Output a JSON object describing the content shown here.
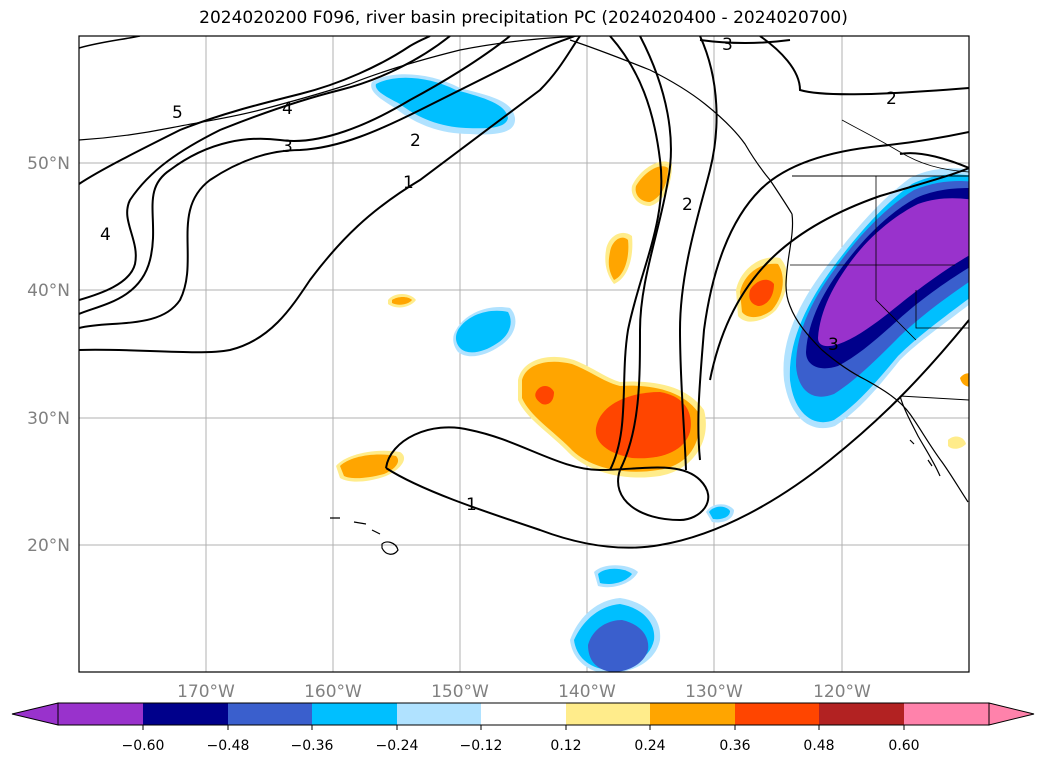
{
  "title": "2024020200 F096, river basin precipitation PC (2024020400 - 2024020700)",
  "map": {
    "lat_labels": [
      "50°N",
      "40°N",
      "30°N",
      "20°N"
    ],
    "lon_labels": [
      "170°W",
      "160°W",
      "150°W",
      "140°W",
      "130°W",
      "120°W"
    ],
    "contour_labels": [
      "5",
      "4",
      "3",
      "2",
      "1",
      "2",
      "2",
      "3",
      "4",
      "1",
      "3"
    ]
  },
  "colorbar": {
    "ticks": [
      "−0.60",
      "−0.48",
      "−0.36",
      "−0.24",
      "−0.12",
      "0.12",
      "0.24",
      "0.36",
      "0.48",
      "0.60"
    ],
    "colors": [
      "#9932CC",
      "#00008B",
      "#3A5FCD",
      "#00BFFF",
      "#B0E2FF",
      "#FFFFFF",
      "#FFEC8B",
      "#FFA500",
      "#FF4500",
      "#B22222",
      "#FF82AB"
    ]
  }
}
